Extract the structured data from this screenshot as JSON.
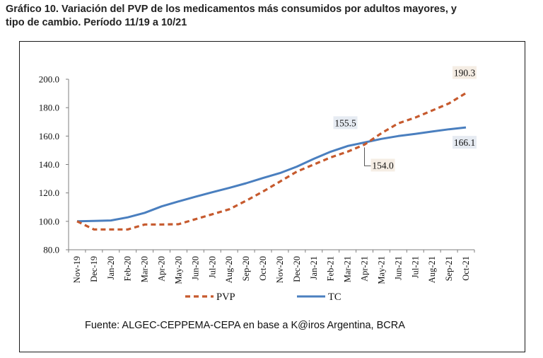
{
  "title_line1": "Gráfico 10. Variación del PVP de los medicamentos más consumidos por adultos mayores, y",
  "title_line2": "tipo de cambio. Período 11/19 a 10/21",
  "source": "Fuente: ALGEC-CEPPEMA-CEPA en base a K@iros Argentina, BCRA",
  "chart_data": {
    "type": "line",
    "title": "Variación del PVP de los medicamentos más consumidos por adultos mayores, y tipo de cambio. Período 11/19 a 10/21",
    "xlabel": "",
    "ylabel": "",
    "ylim": [
      80,
      200
    ],
    "ytick_labels": [
      "80.0",
      "100.0",
      "120.0",
      "140.0",
      "160.0",
      "180.0",
      "200.0"
    ],
    "categories": [
      "Nov-19",
      "Dec-19",
      "Jan-20",
      "Feb-20",
      "Mar-20",
      "Apr-20",
      "May-20",
      "Jun-20",
      "Jul-20",
      "Aug-20",
      "Sep-20",
      "Oct-20",
      "Nov-20",
      "Dec-20",
      "Jan-21",
      "Feb-21",
      "Mar-21",
      "Apr-21",
      "May-21",
      "Jun-21",
      "Jul-21",
      "Aug-21",
      "Sep-21",
      "Oct-21"
    ],
    "series": [
      {
        "name": "PVP",
        "color": "#c65a2e",
        "style": "dashed",
        "values": [
          100.0,
          94.3,
          94.3,
          94.3,
          97.8,
          97.8,
          98.0,
          101.5,
          105.0,
          108.5,
          114.5,
          121.0,
          128.0,
          135.0,
          140.0,
          145.0,
          149.0,
          154.0,
          162.0,
          169.0,
          173.0,
          178.0,
          183.0,
          190.3
        ]
      },
      {
        "name": "TC",
        "color": "#4a7fbf",
        "style": "solid",
        "values": [
          100.0,
          100.3,
          100.6,
          102.8,
          106.0,
          110.5,
          114.0,
          117.3,
          120.5,
          123.5,
          126.8,
          130.5,
          134.0,
          138.5,
          144.0,
          149.0,
          153.0,
          155.5,
          158.0,
          160.0,
          161.5,
          163.2,
          164.8,
          166.1
        ]
      }
    ],
    "annotations": [
      {
        "series": "PVP",
        "category": "Oct-21",
        "text": "190.3"
      },
      {
        "series": "TC",
        "category": "Oct-21",
        "text": "166.1"
      },
      {
        "series": "TC",
        "category": "Apr-21",
        "text": "155.5"
      },
      {
        "series": "PVP",
        "category": "Apr-21",
        "text": "154.0"
      }
    ],
    "legend": "bottom",
    "grid": false
  }
}
